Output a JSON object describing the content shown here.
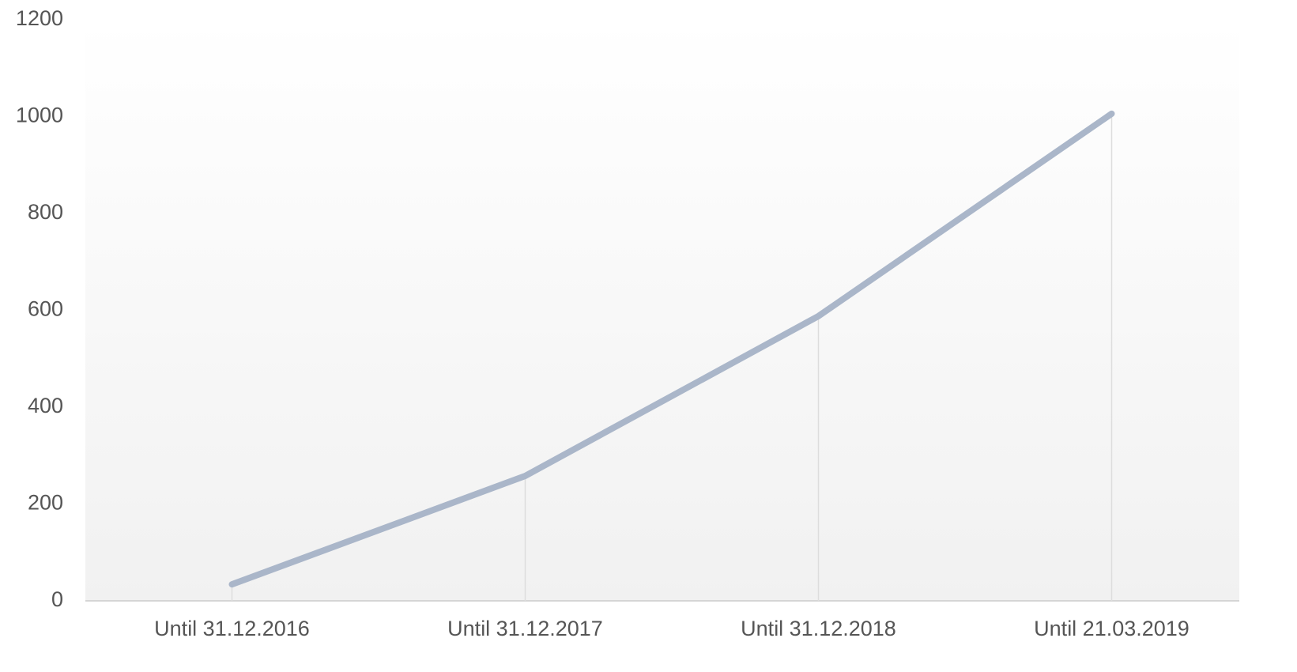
{
  "chart_data": {
    "type": "line",
    "categories": [
      "Until 31.12.2016",
      "Until 31.12.2017",
      "Until 31.12.2018",
      "Until 21.03.2019"
    ],
    "values": [
      34,
      258,
      588,
      1006
    ],
    "color": "#aab6c9",
    "ylim": [
      0,
      1200
    ],
    "yticks": [
      0,
      200,
      400,
      600,
      800,
      1000,
      1200
    ]
  }
}
